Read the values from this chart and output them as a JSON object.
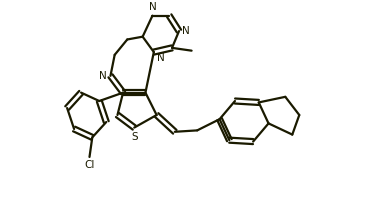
{
  "bg_color": "#ffffff",
  "line_color": "#1a1a00",
  "line_width": 1.6,
  "figsize": [
    3.72,
    2.15
  ],
  "dpi": 100,
  "xlim": [
    0,
    12
  ],
  "ylim": [
    0,
    7.5
  ]
}
